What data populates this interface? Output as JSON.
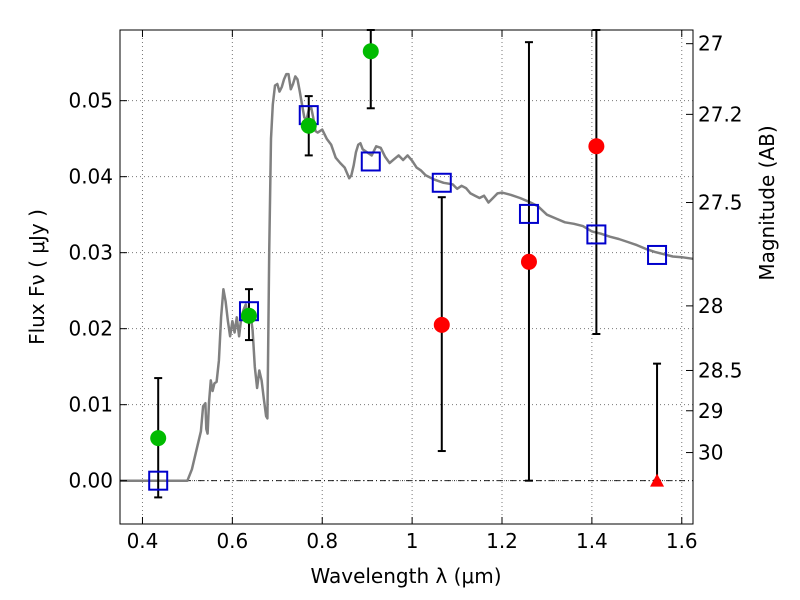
{
  "chart_data": {
    "type": "scatter",
    "xlabel": "Wavelength  λ (μm)",
    "ylabel": "Flux  Fν  ( μJy )",
    "ylabel_right": "Magnitude (AB)",
    "xlim": [
      0.35,
      1.625
    ],
    "ylim": [
      -0.0057,
      0.0593
    ],
    "grid": true,
    "x_ticks": [
      0.4,
      0.6,
      0.8,
      1.0,
      1.2,
      1.4,
      1.6
    ],
    "x_tick_labels": [
      "0.4",
      "0.6",
      "0.8",
      "1",
      "1.2",
      "1.4",
      "1.6"
    ],
    "y_ticks": [
      0.0,
      0.01,
      0.02,
      0.03,
      0.04,
      0.05
    ],
    "y_tick_labels": [
      "0.00",
      "0.01",
      "0.02",
      "0.03",
      "0.04",
      "0.05"
    ],
    "right_ticks": [
      {
        "label": "27",
        "flux": 0.0575
      },
      {
        "label": "27.2",
        "flux": 0.0482
      },
      {
        "label": "27.5",
        "flux": 0.0366
      },
      {
        "label": "28",
        "flux": 0.023
      },
      {
        "label": "28.5",
        "flux": 0.0145
      },
      {
        "label": "29",
        "flux": 0.0092
      },
      {
        "label": "30",
        "flux": 0.0037
      }
    ],
    "colors": {
      "model": "#808080",
      "model_points": "#0000cc",
      "detections": "#00bb00",
      "nondetections": "#ff0000",
      "errorbars": "#000000",
      "grid": "#777777"
    },
    "model_sed": [
      [
        0.35,
        0.0
      ],
      [
        0.5,
        0.0
      ],
      [
        0.51,
        0.0015
      ],
      [
        0.52,
        0.004
      ],
      [
        0.53,
        0.0065
      ],
      [
        0.535,
        0.0098
      ],
      [
        0.54,
        0.0102
      ],
      [
        0.542,
        0.0068
      ],
      [
        0.545,
        0.0062
      ],
      [
        0.548,
        0.0103
      ],
      [
        0.552,
        0.0132
      ],
      [
        0.556,
        0.0118
      ],
      [
        0.56,
        0.0128
      ],
      [
        0.565,
        0.013
      ],
      [
        0.57,
        0.0158
      ],
      [
        0.575,
        0.0215
      ],
      [
        0.58,
        0.0252
      ],
      [
        0.585,
        0.0236
      ],
      [
        0.59,
        0.021
      ],
      [
        0.595,
        0.019
      ],
      [
        0.6,
        0.021
      ],
      [
        0.605,
        0.0195
      ],
      [
        0.61,
        0.0215
      ],
      [
        0.615,
        0.019
      ],
      [
        0.62,
        0.0215
      ],
      [
        0.625,
        0.0225
      ],
      [
        0.63,
        0.0232
      ],
      [
        0.635,
        0.0212
      ],
      [
        0.64,
        0.0222
      ],
      [
        0.645,
        0.0198
      ],
      [
        0.65,
        0.015
      ],
      [
        0.655,
        0.0122
      ],
      [
        0.66,
        0.0145
      ],
      [
        0.665,
        0.0132
      ],
      [
        0.67,
        0.0108
      ],
      [
        0.675,
        0.0085
      ],
      [
        0.678,
        0.0082
      ],
      [
        0.682,
        0.03
      ],
      [
        0.686,
        0.045
      ],
      [
        0.69,
        0.0495
      ],
      [
        0.695,
        0.052
      ],
      [
        0.7,
        0.0522
      ],
      [
        0.705,
        0.0512
      ],
      [
        0.71,
        0.0518
      ],
      [
        0.715,
        0.0528
      ],
      [
        0.72,
        0.0535
      ],
      [
        0.725,
        0.0535
      ],
      [
        0.73,
        0.0515
      ],
      [
        0.735,
        0.0522
      ],
      [
        0.74,
        0.0532
      ],
      [
        0.745,
        0.0528
      ],
      [
        0.75,
        0.0512
      ],
      [
        0.755,
        0.0495
      ],
      [
        0.76,
        0.0478
      ],
      [
        0.765,
        0.0475
      ],
      [
        0.77,
        0.0488
      ],
      [
        0.775,
        0.0492
      ],
      [
        0.78,
        0.0478
      ],
      [
        0.785,
        0.046
      ],
      [
        0.79,
        0.0458
      ],
      [
        0.8,
        0.0462
      ],
      [
        0.81,
        0.045
      ],
      [
        0.82,
        0.0442
      ],
      [
        0.83,
        0.0425
      ],
      [
        0.84,
        0.0418
      ],
      [
        0.85,
        0.0412
      ],
      [
        0.86,
        0.0398
      ],
      [
        0.865,
        0.0402
      ],
      [
        0.87,
        0.0415
      ],
      [
        0.875,
        0.0432
      ],
      [
        0.88,
        0.0442
      ],
      [
        0.885,
        0.0444
      ],
      [
        0.89,
        0.0436
      ],
      [
        0.9,
        0.0432
      ],
      [
        0.91,
        0.0428
      ],
      [
        0.92,
        0.044
      ],
      [
        0.93,
        0.0438
      ],
      [
        0.94,
        0.0426
      ],
      [
        0.95,
        0.0418
      ],
      [
        0.96,
        0.0423
      ],
      [
        0.97,
        0.0428
      ],
      [
        0.98,
        0.0422
      ],
      [
        0.99,
        0.0428
      ],
      [
        1.0,
        0.0421
      ],
      [
        1.01,
        0.0412
      ],
      [
        1.02,
        0.0408
      ],
      [
        1.03,
        0.0402
      ],
      [
        1.05,
        0.0396
      ],
      [
        1.07,
        0.0392
      ],
      [
        1.09,
        0.039
      ],
      [
        1.1,
        0.0384
      ],
      [
        1.11,
        0.0388
      ],
      [
        1.12,
        0.0385
      ],
      [
        1.13,
        0.0378
      ],
      [
        1.14,
        0.0375
      ],
      [
        1.15,
        0.0372
      ],
      [
        1.16,
        0.0375
      ],
      [
        1.17,
        0.0366
      ],
      [
        1.18,
        0.0372
      ],
      [
        1.19,
        0.0378
      ],
      [
        1.2,
        0.0379
      ],
      [
        1.22,
        0.0376
      ],
      [
        1.24,
        0.0372
      ],
      [
        1.26,
        0.0367
      ],
      [
        1.28,
        0.0361
      ],
      [
        1.3,
        0.035
      ],
      [
        1.32,
        0.0345
      ],
      [
        1.34,
        0.034
      ],
      [
        1.36,
        0.0338
      ],
      [
        1.38,
        0.0335
      ],
      [
        1.4,
        0.0328
      ],
      [
        1.42,
        0.0325
      ],
      [
        1.44,
        0.0321
      ],
      [
        1.46,
        0.0318
      ],
      [
        1.48,
        0.0314
      ],
      [
        1.5,
        0.031
      ],
      [
        1.52,
        0.0305
      ],
      [
        1.54,
        0.0301
      ],
      [
        1.56,
        0.0298
      ],
      [
        1.58,
        0.0295
      ],
      [
        1.6,
        0.0294
      ],
      [
        1.625,
        0.0292
      ]
    ],
    "model_points": [
      {
        "x": 0.435,
        "y": 0.0
      },
      {
        "x": 0.637,
        "y": 0.0223
      },
      {
        "x": 0.77,
        "y": 0.0481
      },
      {
        "x": 0.908,
        "y": 0.042
      },
      {
        "x": 1.066,
        "y": 0.0392
      },
      {
        "x": 1.26,
        "y": 0.0351
      },
      {
        "x": 1.41,
        "y": 0.0324
      },
      {
        "x": 1.545,
        "y": 0.0297
      }
    ],
    "detections": [
      {
        "x": 0.435,
        "y": 0.0056,
        "err_low": -0.0022,
        "err_high": 0.0135
      },
      {
        "x": 0.637,
        "y": 0.0217,
        "err_low": 0.0185,
        "err_high": 0.0252
      },
      {
        "x": 0.77,
        "y": 0.0467,
        "err_low": 0.0428,
        "err_high": 0.0506
      },
      {
        "x": 0.908,
        "y": 0.0565,
        "err_low": 0.049,
        "err_high": 0.0593
      }
    ],
    "nondetections": [
      {
        "x": 1.066,
        "y": 0.0205,
        "err_low": 0.0039,
        "err_high": 0.0373
      },
      {
        "x": 1.26,
        "y": 0.0288,
        "err_low": 0.0,
        "err_high": 0.0577
      },
      {
        "x": 1.41,
        "y": 0.044,
        "err_low": 0.0193,
        "err_high": 0.0593
      }
    ],
    "upper_limits": [
      {
        "x": 1.545,
        "y": 0.0,
        "err_low": 0.0,
        "err_high": 0.0154
      }
    ]
  }
}
